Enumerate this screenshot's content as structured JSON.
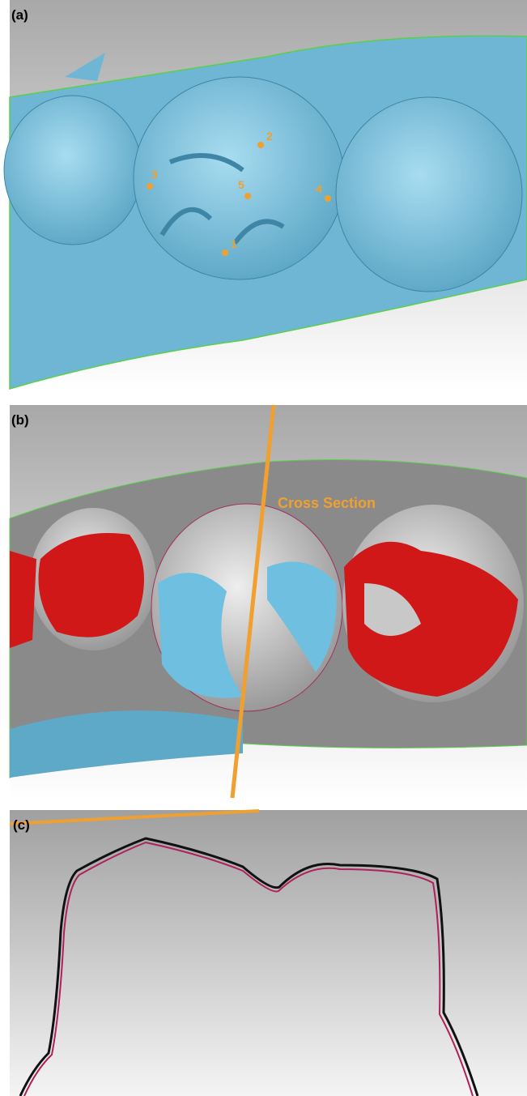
{
  "panels": [
    {
      "label": "(a)",
      "points": [
        "1",
        "2",
        "3",
        "4",
        "5"
      ]
    },
    {
      "label": "(b)",
      "annotation": "Cross Section"
    },
    {
      "label": "(c)"
    }
  ]
}
